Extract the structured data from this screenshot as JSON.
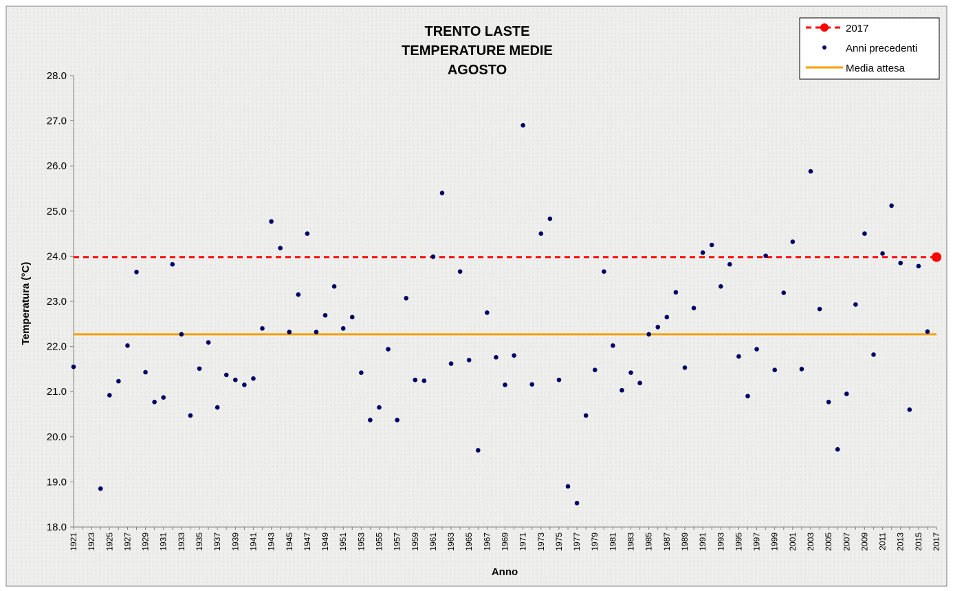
{
  "colors": {
    "current_year": "#ff0000",
    "previous_years": "#000066",
    "mean_line": "#f5a100",
    "background": "#eeeeec",
    "axis": "#808080"
  },
  "chart_data": {
    "type": "scatter",
    "title_lines": [
      "TRENTO LASTE",
      "TEMPERATURE MEDIE",
      "AGOSTO"
    ],
    "xlabel": "Anno",
    "ylabel": "Temperatura (°C)",
    "xlim": [
      1921,
      2017
    ],
    "ylim": [
      18.0,
      28.0
    ],
    "y_ticks": [
      "18.0",
      "19.0",
      "20.0",
      "21.0",
      "22.0",
      "23.0",
      "24.0",
      "25.0",
      "26.0",
      "27.0",
      "28.0"
    ],
    "x_ticks": [
      "1921",
      "1923",
      "1925",
      "1927",
      "1929",
      "1931",
      "1933",
      "1935",
      "1937",
      "1939",
      "1941",
      "1943",
      "1945",
      "1947",
      "1949",
      "1951",
      "1953",
      "1955",
      "1957",
      "1959",
      "1961",
      "1963",
      "1965",
      "1967",
      "1969",
      "1971",
      "1973",
      "1975",
      "1977",
      "1979",
      "1981",
      "1983",
      "1985",
      "1987",
      "1989",
      "1991",
      "1993",
      "1995",
      "1997",
      "1999",
      "2001",
      "2003",
      "2005",
      "2007",
      "2009",
      "2011",
      "2013",
      "2015",
      "2017"
    ],
    "legend_position": "top-right",
    "legend": {
      "current": "2017",
      "previous": "Anni precedenti",
      "mean": "Media attesa"
    },
    "current_year": {
      "x": 2017,
      "y": 23.98
    },
    "mean_value": 22.27,
    "series": [
      {
        "name": "Anni precedenti",
        "points": [
          [
            1921,
            21.55
          ],
          [
            1924,
            18.85
          ],
          [
            1925,
            20.92
          ],
          [
            1926,
            21.23
          ],
          [
            1927,
            22.02
          ],
          [
            1928,
            23.65
          ],
          [
            1929,
            21.43
          ],
          [
            1930,
            20.77
          ],
          [
            1931,
            20.87
          ],
          [
            1932,
            23.82
          ],
          [
            1933,
            22.27
          ],
          [
            1934,
            20.47
          ],
          [
            1935,
            21.51
          ],
          [
            1936,
            22.09
          ],
          [
            1937,
            20.65
          ],
          [
            1938,
            21.37
          ],
          [
            1939,
            21.26
          ],
          [
            1940,
            21.15
          ],
          [
            1941,
            21.29
          ],
          [
            1942,
            22.4
          ],
          [
            1943,
            24.77
          ],
          [
            1944,
            24.18
          ],
          [
            1945,
            22.32
          ],
          [
            1946,
            23.15
          ],
          [
            1947,
            24.5
          ],
          [
            1948,
            22.32
          ],
          [
            1949,
            22.69
          ],
          [
            1950,
            23.33
          ],
          [
            1951,
            22.4
          ],
          [
            1952,
            22.65
          ],
          [
            1953,
            21.42
          ],
          [
            1954,
            20.37
          ],
          [
            1955,
            20.65
          ],
          [
            1956,
            21.94
          ],
          [
            1957,
            20.37
          ],
          [
            1958,
            23.07
          ],
          [
            1959,
            21.26
          ],
          [
            1960,
            21.24
          ],
          [
            1961,
            23.99
          ],
          [
            1962,
            25.4
          ],
          [
            1963,
            21.62
          ],
          [
            1964,
            23.66
          ],
          [
            1965,
            21.7
          ],
          [
            1966,
            19.7
          ],
          [
            1967,
            22.75
          ],
          [
            1968,
            21.76
          ],
          [
            1969,
            21.15
          ],
          [
            1970,
            21.8
          ],
          [
            1971,
            26.9
          ],
          [
            1972,
            21.16
          ],
          [
            1973,
            24.5
          ],
          [
            1974,
            24.83
          ],
          [
            1975,
            21.26
          ],
          [
            1976,
            18.9
          ],
          [
            1977,
            18.53
          ],
          [
            1978,
            20.47
          ],
          [
            1979,
            21.48
          ],
          [
            1980,
            23.66
          ],
          [
            1981,
            22.02
          ],
          [
            1982,
            21.03
          ],
          [
            1983,
            21.42
          ],
          [
            1984,
            21.19
          ],
          [
            1985,
            22.27
          ],
          [
            1986,
            22.43
          ],
          [
            1987,
            22.65
          ],
          [
            1988,
            23.2
          ],
          [
            1989,
            21.53
          ],
          [
            1990,
            22.85
          ],
          [
            1991,
            24.08
          ],
          [
            1992,
            24.25
          ],
          [
            1993,
            23.33
          ],
          [
            1994,
            23.82
          ],
          [
            1995,
            21.78
          ],
          [
            1996,
            20.9
          ],
          [
            1997,
            21.94
          ],
          [
            1998,
            24.01
          ],
          [
            1999,
            21.48
          ],
          [
            2000,
            23.19
          ],
          [
            2001,
            24.32
          ],
          [
            2002,
            21.5
          ],
          [
            2003,
            25.88
          ],
          [
            2004,
            22.83
          ],
          [
            2005,
            20.77
          ],
          [
            2006,
            19.72
          ],
          [
            2007,
            20.95
          ],
          [
            2008,
            22.93
          ],
          [
            2009,
            24.5
          ],
          [
            2010,
            21.82
          ],
          [
            2011,
            24.06
          ],
          [
            2012,
            25.12
          ],
          [
            2013,
            23.85
          ],
          [
            2014,
            20.6
          ],
          [
            2015,
            23.78
          ],
          [
            2016,
            22.33
          ]
        ]
      }
    ]
  }
}
